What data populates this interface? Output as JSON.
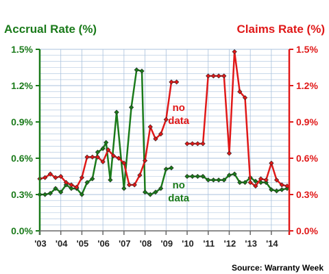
{
  "chart_data": {
    "type": "line",
    "left_axis_title": "Accrual Rate (%)",
    "right_axis_title": "Claims Rate (%)",
    "source": "Source: Warranty Week",
    "y_ticks": [
      "0.0%",
      "0.3%",
      "0.6%",
      "0.9%",
      "1.2%",
      "1.5%"
    ],
    "ylim": [
      0,
      1.5
    ],
    "xlim": [
      2003,
      2014.85
    ],
    "x_ticks": [
      "'03",
      "'04",
      "'05",
      "'06",
      "'07",
      "'08",
      "'09",
      "'10",
      "'11",
      "'12",
      "'13",
      "'14"
    ],
    "grid": true,
    "colors": {
      "accrual": "#1a7a1a",
      "claims": "#e01818",
      "grid": "#a8c0dc"
    },
    "annotations": [
      {
        "text": [
          "no",
          "data"
        ],
        "series": "claims",
        "x": 2009.6,
        "y": 0.99
      },
      {
        "text": [
          "no",
          "data"
        ],
        "series": "accrual",
        "x": 2009.6,
        "y": 0.35
      }
    ],
    "series": [
      {
        "key": "accrual",
        "axis": "left",
        "segments": [
          [
            [
              2003.0,
              0.3
            ],
            [
              2003.25,
              0.3
            ],
            [
              2003.5,
              0.31
            ],
            [
              2003.75,
              0.35
            ],
            [
              2004.0,
              0.32
            ],
            [
              2004.25,
              0.38
            ],
            [
              2004.5,
              0.35
            ],
            [
              2004.75,
              0.35
            ],
            [
              2005.0,
              0.3
            ],
            [
              2005.25,
              0.4
            ],
            [
              2005.5,
              0.43
            ],
            [
              2005.75,
              0.65
            ],
            [
              2006.0,
              0.68
            ],
            [
              2006.15,
              0.73
            ],
            [
              2006.35,
              0.42
            ],
            [
              2006.65,
              0.98
            ],
            [
              2007.0,
              0.35
            ],
            [
              2007.35,
              1.02
            ],
            [
              2007.6,
              1.33
            ],
            [
              2007.85,
              1.32
            ],
            [
              2008.0,
              0.32
            ],
            [
              2008.25,
              0.3
            ],
            [
              2008.5,
              0.32
            ],
            [
              2008.75,
              0.35
            ],
            [
              2009.0,
              0.51
            ],
            [
              2009.25,
              0.52
            ]
          ],
          [
            [
              2010.0,
              0.45
            ],
            [
              2010.25,
              0.45
            ],
            [
              2010.5,
              0.45
            ],
            [
              2010.75,
              0.45
            ],
            [
              2011.0,
              0.42
            ],
            [
              2011.25,
              0.42
            ],
            [
              2011.5,
              0.42
            ],
            [
              2011.75,
              0.42
            ],
            [
              2012.0,
              0.46
            ],
            [
              2012.25,
              0.47
            ],
            [
              2012.5,
              0.4
            ],
            [
              2012.75,
              0.4
            ],
            [
              2013.0,
              0.44
            ],
            [
              2013.25,
              0.41
            ],
            [
              2013.5,
              0.4
            ],
            [
              2013.75,
              0.4
            ],
            [
              2014.0,
              0.34
            ],
            [
              2014.25,
              0.33
            ],
            [
              2014.5,
              0.34
            ],
            [
              2014.75,
              0.35
            ]
          ]
        ]
      },
      {
        "key": "claims",
        "axis": "right",
        "segments": [
          [
            [
              2003.0,
              0.43
            ],
            [
              2003.25,
              0.44
            ],
            [
              2003.5,
              0.47
            ],
            [
              2003.75,
              0.44
            ],
            [
              2004.0,
              0.45
            ],
            [
              2004.25,
              0.4
            ],
            [
              2004.5,
              0.38
            ],
            [
              2004.75,
              0.36
            ],
            [
              2005.0,
              0.44
            ],
            [
              2005.25,
              0.61
            ],
            [
              2005.5,
              0.61
            ],
            [
              2005.75,
              0.61
            ],
            [
              2006.0,
              0.57
            ],
            [
              2006.25,
              0.67
            ],
            [
              2006.5,
              0.62
            ],
            [
              2006.75,
              0.6
            ],
            [
              2007.0,
              0.56
            ],
            [
              2007.25,
              0.38
            ],
            [
              2007.5,
              0.38
            ],
            [
              2007.75,
              0.46
            ],
            [
              2008.0,
              0.58
            ],
            [
              2008.25,
              0.86
            ],
            [
              2008.5,
              0.76
            ],
            [
              2008.75,
              0.8
            ],
            [
              2009.0,
              0.92
            ],
            [
              2009.25,
              1.23
            ],
            [
              2009.5,
              1.23
            ]
          ],
          [
            [
              2010.0,
              0.72
            ],
            [
              2010.25,
              0.72
            ],
            [
              2010.5,
              0.72
            ],
            [
              2010.75,
              0.72
            ],
            [
              2011.0,
              1.28
            ],
            [
              2011.25,
              1.28
            ],
            [
              2011.5,
              1.28
            ],
            [
              2011.75,
              1.28
            ],
            [
              2012.0,
              0.64
            ],
            [
              2012.25,
              1.48
            ],
            [
              2012.5,
              1.15
            ],
            [
              2012.75,
              1.1
            ],
            [
              2013.0,
              0.4
            ],
            [
              2013.25,
              0.37
            ],
            [
              2013.5,
              0.43
            ],
            [
              2013.75,
              0.42
            ],
            [
              2014.0,
              0.56
            ],
            [
              2014.25,
              0.42
            ],
            [
              2014.5,
              0.38
            ],
            [
              2014.75,
              0.37
            ]
          ]
        ]
      }
    ]
  }
}
